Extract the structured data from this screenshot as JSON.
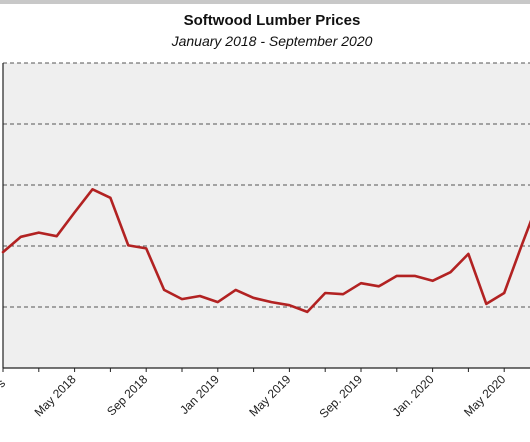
{
  "chart_data": {
    "type": "line",
    "title": "Softwood Lumber Prices",
    "subtitle": "January 2018 - September 2020",
    "xlabel": "",
    "ylabel": "",
    "x_tick_labels": [
      "May 2018",
      "Sep 2018",
      "Jan 2019",
      "May 2019",
      "Sep. 2019",
      "Jan. 2020",
      "May 2020"
    ],
    "series": [
      {
        "name": "",
        "color": "#b22222",
        "x": [
          "Jan 2018",
          "Feb 2018",
          "Mar 2018",
          "Apr 2018",
          "May 2018",
          "Jun 2018",
          "Jul 2018",
          "Aug 2018",
          "Sep 2018",
          "Oct 2018",
          "Nov 2018",
          "Dec 2018",
          "Jan 2019",
          "Feb 2019",
          "Mar 2019",
          "Apr 2019",
          "May 2019",
          "Jun 2019",
          "Jul 2019",
          "Aug 2019",
          "Sep 2019",
          "Oct 2019",
          "Nov 2019",
          "Dec 2019",
          "Jan 2020",
          "Feb 2020",
          "Mar 2020",
          "Apr 2020",
          "May 2020",
          "Jun 2020",
          "Jul 2020"
        ],
        "values": [
          1.9,
          2.15,
          2.22,
          2.16,
          2.55,
          2.93,
          2.79,
          2.01,
          1.96,
          1.28,
          1.13,
          1.18,
          1.08,
          1.28,
          1.15,
          1.08,
          1.03,
          0.92,
          1.23,
          1.21,
          1.39,
          1.34,
          1.51,
          1.51,
          1.43,
          1.57,
          1.87,
          1.05,
          1.23,
          2.03,
          2.8
        ]
      }
    ],
    "ylim": [
      0,
      5
    ],
    "grid": "horizontal dashed",
    "legend": "none"
  }
}
